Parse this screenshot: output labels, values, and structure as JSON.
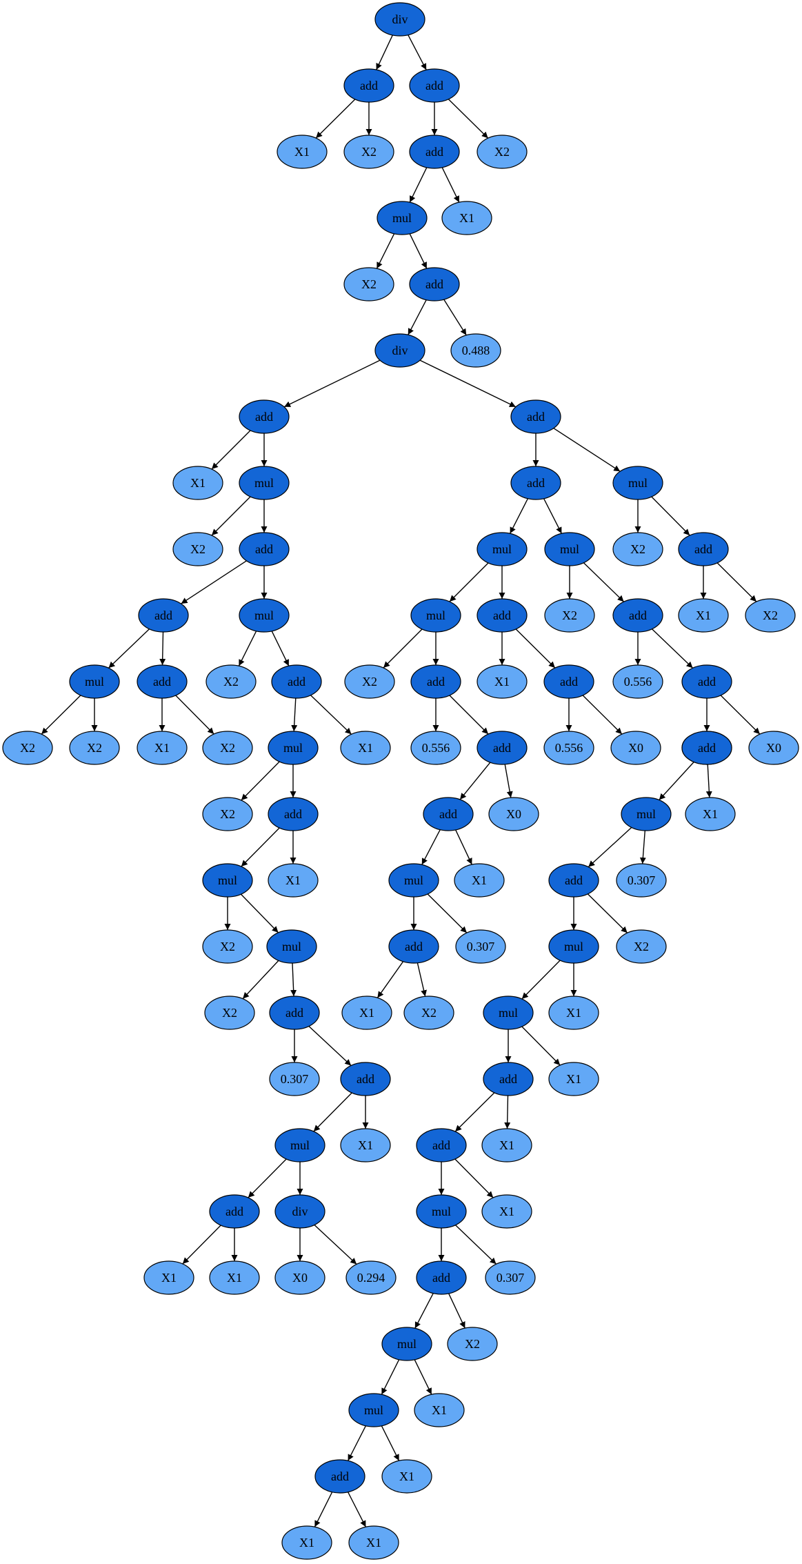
{
  "colors": {
    "operator_fill": "#1366d6",
    "leaf_fill": "#62a8f6",
    "edge": "#000000",
    "outline": "#000000"
  },
  "tree": {
    "nodes": [
      {
        "id": "n0",
        "label": "div",
        "kind": "op"
      },
      {
        "id": "n1",
        "label": "add",
        "kind": "op"
      },
      {
        "id": "n2",
        "label": "add",
        "kind": "op"
      },
      {
        "id": "n3",
        "label": "X1",
        "kind": "leaf"
      },
      {
        "id": "n4",
        "label": "X2",
        "kind": "leaf"
      },
      {
        "id": "n5",
        "label": "add",
        "kind": "op"
      },
      {
        "id": "n6",
        "label": "X2",
        "kind": "leaf"
      },
      {
        "id": "n7",
        "label": "mul",
        "kind": "op"
      },
      {
        "id": "n8",
        "label": "X1",
        "kind": "leaf"
      },
      {
        "id": "n9",
        "label": "X2",
        "kind": "leaf"
      },
      {
        "id": "n10",
        "label": "add",
        "kind": "op"
      },
      {
        "id": "n11",
        "label": "div",
        "kind": "op"
      },
      {
        "id": "n12",
        "label": "0.488",
        "kind": "leaf"
      },
      {
        "id": "n13",
        "label": "add",
        "kind": "op"
      },
      {
        "id": "n14",
        "label": "add",
        "kind": "op"
      },
      {
        "id": "n15",
        "label": "X1",
        "kind": "leaf"
      },
      {
        "id": "n16",
        "label": "mul",
        "kind": "op"
      },
      {
        "id": "n17",
        "label": "X2",
        "kind": "leaf"
      },
      {
        "id": "n18",
        "label": "add",
        "kind": "op"
      },
      {
        "id": "n19",
        "label": "add",
        "kind": "op"
      },
      {
        "id": "n20",
        "label": "mul",
        "kind": "op"
      },
      {
        "id": "n21",
        "label": "mul",
        "kind": "op"
      },
      {
        "id": "n22",
        "label": "add",
        "kind": "op"
      },
      {
        "id": "n23",
        "label": "X2",
        "kind": "leaf"
      },
      {
        "id": "n24",
        "label": "X2",
        "kind": "leaf"
      },
      {
        "id": "n25",
        "label": "X1",
        "kind": "leaf"
      },
      {
        "id": "n26",
        "label": "X2",
        "kind": "leaf"
      },
      {
        "id": "n27",
        "label": "X2",
        "kind": "leaf"
      },
      {
        "id": "n28",
        "label": "add",
        "kind": "op"
      },
      {
        "id": "n29",
        "label": "mul",
        "kind": "op"
      },
      {
        "id": "n30",
        "label": "X1",
        "kind": "leaf"
      },
      {
        "id": "n31",
        "label": "X2",
        "kind": "leaf"
      },
      {
        "id": "n32",
        "label": "add",
        "kind": "op"
      },
      {
        "id": "n33",
        "label": "mul",
        "kind": "op"
      },
      {
        "id": "n34",
        "label": "X1",
        "kind": "leaf"
      },
      {
        "id": "n35",
        "label": "X2",
        "kind": "leaf"
      },
      {
        "id": "n36",
        "label": "mul",
        "kind": "op"
      },
      {
        "id": "n37",
        "label": "X2",
        "kind": "leaf"
      },
      {
        "id": "n38",
        "label": "add",
        "kind": "op"
      },
      {
        "id": "n39",
        "label": "0.307",
        "kind": "leaf"
      },
      {
        "id": "n40",
        "label": "add",
        "kind": "op"
      },
      {
        "id": "n41",
        "label": "mul",
        "kind": "op"
      },
      {
        "id": "n42",
        "label": "X1",
        "kind": "leaf"
      },
      {
        "id": "n43",
        "label": "add",
        "kind": "op"
      },
      {
        "id": "n44",
        "label": "div",
        "kind": "op"
      },
      {
        "id": "n45",
        "label": "X1",
        "kind": "leaf"
      },
      {
        "id": "n46",
        "label": "X1",
        "kind": "leaf"
      },
      {
        "id": "n47",
        "label": "X0",
        "kind": "leaf"
      },
      {
        "id": "n48",
        "label": "0.294",
        "kind": "leaf"
      },
      {
        "id": "n49",
        "label": "add",
        "kind": "op"
      },
      {
        "id": "n50",
        "label": "add",
        "kind": "op"
      },
      {
        "id": "n51",
        "label": "mul",
        "kind": "op"
      },
      {
        "id": "n52",
        "label": "mul",
        "kind": "op"
      },
      {
        "id": "n53",
        "label": "mul",
        "kind": "op"
      },
      {
        "id": "n54",
        "label": "mul",
        "kind": "op"
      },
      {
        "id": "n55",
        "label": "add",
        "kind": "op"
      },
      {
        "id": "n56",
        "label": "X2",
        "kind": "leaf"
      },
      {
        "id": "n57",
        "label": "add",
        "kind": "op"
      },
      {
        "id": "n58",
        "label": "X2",
        "kind": "leaf"
      },
      {
        "id": "n59",
        "label": "add",
        "kind": "op"
      },
      {
        "id": "n60",
        "label": "X1",
        "kind": "leaf"
      },
      {
        "id": "n61",
        "label": "X2",
        "kind": "leaf"
      },
      {
        "id": "n62",
        "label": "X2",
        "kind": "leaf"
      },
      {
        "id": "n63",
        "label": "add",
        "kind": "op"
      },
      {
        "id": "n64",
        "label": "X1",
        "kind": "leaf"
      },
      {
        "id": "n65",
        "label": "add",
        "kind": "op"
      },
      {
        "id": "n66",
        "label": "0.556",
        "kind": "leaf"
      },
      {
        "id": "n67",
        "label": "add",
        "kind": "op"
      },
      {
        "id": "n68",
        "label": "0.556",
        "kind": "leaf"
      },
      {
        "id": "n69",
        "label": "add",
        "kind": "op"
      },
      {
        "id": "n70",
        "label": "0.556",
        "kind": "leaf"
      },
      {
        "id": "n71",
        "label": "X0",
        "kind": "leaf"
      },
      {
        "id": "n72",
        "label": "add",
        "kind": "op"
      },
      {
        "id": "n73",
        "label": "X0",
        "kind": "leaf"
      },
      {
        "id": "n74",
        "label": "add",
        "kind": "op"
      },
      {
        "id": "n75",
        "label": "X0",
        "kind": "leaf"
      },
      {
        "id": "n76",
        "label": "mul",
        "kind": "op"
      },
      {
        "id": "n77",
        "label": "X1",
        "kind": "leaf"
      },
      {
        "id": "n78",
        "label": "mul",
        "kind": "op"
      },
      {
        "id": "n79",
        "label": "X1",
        "kind": "leaf"
      },
      {
        "id": "n80",
        "label": "add",
        "kind": "op"
      },
      {
        "id": "n81",
        "label": "0.307",
        "kind": "leaf"
      },
      {
        "id": "n82",
        "label": "add",
        "kind": "op"
      },
      {
        "id": "n83",
        "label": "0.307",
        "kind": "leaf"
      },
      {
        "id": "n84",
        "label": "X1",
        "kind": "leaf"
      },
      {
        "id": "n85",
        "label": "X2",
        "kind": "leaf"
      },
      {
        "id": "n86",
        "label": "mul",
        "kind": "op"
      },
      {
        "id": "n87",
        "label": "X2",
        "kind": "leaf"
      },
      {
        "id": "n88",
        "label": "mul",
        "kind": "op"
      },
      {
        "id": "n89",
        "label": "X1",
        "kind": "leaf"
      },
      {
        "id": "n90",
        "label": "add",
        "kind": "op"
      },
      {
        "id": "n91",
        "label": "X1",
        "kind": "leaf"
      },
      {
        "id": "n92",
        "label": "add",
        "kind": "op"
      },
      {
        "id": "n93",
        "label": "X1",
        "kind": "leaf"
      },
      {
        "id": "n94",
        "label": "mul",
        "kind": "op"
      },
      {
        "id": "n95",
        "label": "X1",
        "kind": "leaf"
      },
      {
        "id": "n96",
        "label": "add",
        "kind": "op"
      },
      {
        "id": "n97",
        "label": "0.307",
        "kind": "leaf"
      },
      {
        "id": "n98",
        "label": "mul",
        "kind": "op"
      },
      {
        "id": "n99",
        "label": "X2",
        "kind": "leaf"
      },
      {
        "id": "n100",
        "label": "mul",
        "kind": "op"
      },
      {
        "id": "n101",
        "label": "X1",
        "kind": "leaf"
      },
      {
        "id": "n102",
        "label": "add",
        "kind": "op"
      },
      {
        "id": "n103",
        "label": "X1",
        "kind": "leaf"
      },
      {
        "id": "n104",
        "label": "X1",
        "kind": "leaf"
      },
      {
        "id": "n105",
        "label": "X1",
        "kind": "leaf"
      }
    ],
    "edges": [
      [
        "n0",
        "n1"
      ],
      [
        "n0",
        "n2"
      ],
      [
        "n1",
        "n3"
      ],
      [
        "n1",
        "n4"
      ],
      [
        "n2",
        "n5"
      ],
      [
        "n2",
        "n6"
      ],
      [
        "n5",
        "n7"
      ],
      [
        "n5",
        "n8"
      ],
      [
        "n7",
        "n9"
      ],
      [
        "n7",
        "n10"
      ],
      [
        "n10",
        "n11"
      ],
      [
        "n10",
        "n12"
      ],
      [
        "n11",
        "n13"
      ],
      [
        "n11",
        "n49"
      ],
      [
        "n13",
        "n15"
      ],
      [
        "n13",
        "n16"
      ],
      [
        "n16",
        "n17"
      ],
      [
        "n16",
        "n18"
      ],
      [
        "n18",
        "n19"
      ],
      [
        "n18",
        "n29"
      ],
      [
        "n19",
        "n20"
      ],
      [
        "n19",
        "n22"
      ],
      [
        "n20",
        "n23"
      ],
      [
        "n20",
        "n24"
      ],
      [
        "n22",
        "n25"
      ],
      [
        "n22",
        "n26"
      ],
      [
        "n29",
        "n27"
      ],
      [
        "n29",
        "n28"
      ],
      [
        "n28",
        "n33"
      ],
      [
        "n28",
        "n30"
      ],
      [
        "n33",
        "n31"
      ],
      [
        "n33",
        "n32"
      ],
      [
        "n32",
        "n36"
      ],
      [
        "n32",
        "n34"
      ],
      [
        "n36",
        "n35"
      ],
      [
        "n36",
        "n21"
      ],
      [
        "n21",
        "n37"
      ],
      [
        "n21",
        "n38"
      ],
      [
        "n38",
        "n39"
      ],
      [
        "n38",
        "n40"
      ],
      [
        "n40",
        "n41"
      ],
      [
        "n40",
        "n42"
      ],
      [
        "n41",
        "n43"
      ],
      [
        "n41",
        "n44"
      ],
      [
        "n43",
        "n45"
      ],
      [
        "n43",
        "n46"
      ],
      [
        "n44",
        "n47"
      ],
      [
        "n44",
        "n48"
      ],
      [
        "n49",
        "n50"
      ],
      [
        "n49",
        "n51"
      ],
      [
        "n50",
        "n52"
      ],
      [
        "n50",
        "n53"
      ],
      [
        "n51",
        "n58"
      ],
      [
        "n51",
        "n14"
      ],
      [
        "n14",
        "n60"
      ],
      [
        "n14",
        "n61"
      ],
      [
        "n52",
        "n54"
      ],
      [
        "n52",
        "n63"
      ],
      [
        "n54",
        "n56"
      ],
      [
        "n54",
        "n55"
      ],
      [
        "n55",
        "n66"
      ],
      [
        "n55",
        "n67"
      ],
      [
        "n67",
        "n72"
      ],
      [
        "n67",
        "n73"
      ],
      [
        "n72",
        "n76"
      ],
      [
        "n72",
        "n77"
      ],
      [
        "n76",
        "n80"
      ],
      [
        "n76",
        "n81"
      ],
      [
        "n80",
        "n84"
      ],
      [
        "n80",
        "n85"
      ],
      [
        "n63",
        "n64"
      ],
      [
        "n63",
        "n65"
      ],
      [
        "n65",
        "n68"
      ],
      [
        "n65",
        "n71"
      ],
      [
        "n53",
        "n62"
      ],
      [
        "n53",
        "n57"
      ],
      [
        "n57",
        "n70"
      ],
      [
        "n57",
        "n59"
      ],
      [
        "n59",
        "n69"
      ],
      [
        "n59",
        "n75"
      ],
      [
        "n69",
        "n78"
      ],
      [
        "n69",
        "n79"
      ],
      [
        "n78",
        "n82"
      ],
      [
        "n78",
        "n83"
      ],
      [
        "n82",
        "n86"
      ],
      [
        "n82",
        "n87"
      ],
      [
        "n86",
        "n88"
      ],
      [
        "n86",
        "n89"
      ],
      [
        "n88",
        "n90"
      ],
      [
        "n88",
        "n91"
      ],
      [
        "n90",
        "n92"
      ],
      [
        "n90",
        "n93"
      ],
      [
        "n92",
        "n94"
      ],
      [
        "n92",
        "n95"
      ],
      [
        "n94",
        "n96"
      ],
      [
        "n94",
        "n97"
      ],
      [
        "n96",
        "n98"
      ],
      [
        "n96",
        "n99"
      ],
      [
        "n98",
        "n100"
      ],
      [
        "n98",
        "n101"
      ],
      [
        "n100",
        "n102"
      ],
      [
        "n100",
        "n103"
      ],
      [
        "n102",
        "n104"
      ],
      [
        "n102",
        "n105"
      ]
    ]
  }
}
